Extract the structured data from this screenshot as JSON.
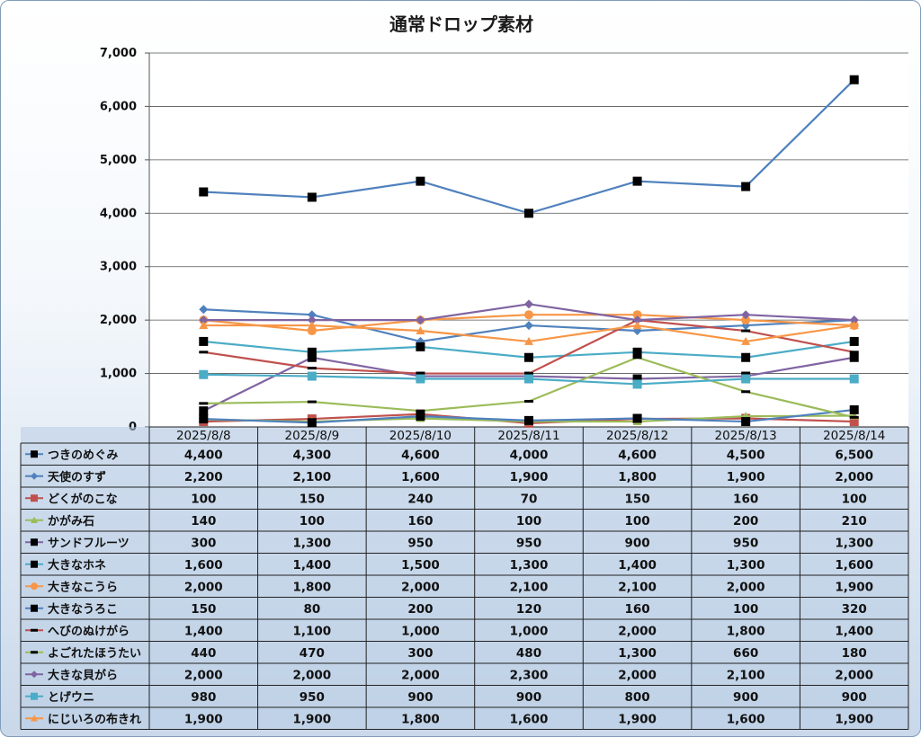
{
  "chart_data": {
    "type": "line",
    "title": "通常ドロップ素材",
    "categories": [
      "2025/8/8",
      "2025/8/9",
      "2025/8/10",
      "2025/8/11",
      "2025/8/12",
      "2025/8/13",
      "2025/8/14"
    ],
    "ylim": [
      0,
      7000
    ],
    "yticks": [
      "0",
      "1,000",
      "2,000",
      "3,000",
      "4,000",
      "5,000",
      "6,000",
      "7,000"
    ],
    "grid": true,
    "legend": "data-table",
    "series": [
      {
        "name": "つきのめぐみ",
        "color": "#4f81bd",
        "marker": "square-black",
        "values": [
          4400,
          4300,
          4600,
          4000,
          4600,
          4500,
          6500
        ],
        "labels": [
          "4,400",
          "4,300",
          "4,600",
          "4,000",
          "4,600",
          "4,500",
          "6,500"
        ]
      },
      {
        "name": "天使のすず",
        "color": "#4f81bd",
        "marker": "diamond",
        "values": [
          2200,
          2100,
          1600,
          1900,
          1800,
          1900,
          2000
        ],
        "labels": [
          "2,200",
          "2,100",
          "1,600",
          "1,900",
          "1,800",
          "1,900",
          "2,000"
        ]
      },
      {
        "name": "どくがのこな",
        "color": "#c0504d",
        "marker": "square",
        "values": [
          100,
          150,
          240,
          70,
          150,
          160,
          100
        ],
        "labels": [
          "100",
          "150",
          "240",
          "70",
          "150",
          "160",
          "100"
        ]
      },
      {
        "name": "かがみ石",
        "color": "#9bbb59",
        "marker": "triangle",
        "values": [
          140,
          100,
          160,
          100,
          100,
          200,
          210
        ],
        "labels": [
          "140",
          "100",
          "160",
          "100",
          "100",
          "200",
          "210"
        ]
      },
      {
        "name": "サンドフルーツ",
        "color": "#8064a2",
        "marker": "square-black",
        "values": [
          300,
          1300,
          950,
          950,
          900,
          950,
          1300
        ],
        "labels": [
          "300",
          "1,300",
          "950",
          "950",
          "900",
          "950",
          "1,300"
        ]
      },
      {
        "name": "大きなホネ",
        "color": "#4bacc6",
        "marker": "square-black",
        "values": [
          1600,
          1400,
          1500,
          1300,
          1400,
          1300,
          1600
        ],
        "labels": [
          "1,600",
          "1,400",
          "1,500",
          "1,300",
          "1,400",
          "1,300",
          "1,600"
        ]
      },
      {
        "name": "大きなこうら",
        "color": "#f79646",
        "marker": "circle",
        "values": [
          2000,
          1800,
          2000,
          2100,
          2100,
          2000,
          1900
        ],
        "labels": [
          "2,000",
          "1,800",
          "2,000",
          "2,100",
          "2,100",
          "2,000",
          "1,900"
        ]
      },
      {
        "name": "大きなうろこ",
        "color": "#4f81bd",
        "marker": "square-black",
        "values": [
          150,
          80,
          200,
          120,
          160,
          100,
          320
        ],
        "labels": [
          "150",
          "80",
          "200",
          "120",
          "160",
          "100",
          "320"
        ]
      },
      {
        "name": "へびのぬけがら",
        "color": "#c0504d",
        "marker": "dash",
        "values": [
          1400,
          1100,
          1000,
          1000,
          2000,
          1800,
          1400
        ],
        "labels": [
          "1,400",
          "1,100",
          "1,000",
          "1,000",
          "2,000",
          "1,800",
          "1,400"
        ]
      },
      {
        "name": "よごれたほうたい",
        "color": "#9bbb59",
        "marker": "dash",
        "values": [
          440,
          470,
          300,
          480,
          1300,
          660,
          180
        ],
        "labels": [
          "440",
          "470",
          "300",
          "480",
          "1,300",
          "660",
          "180"
        ]
      },
      {
        "name": "大きな貝がら",
        "color": "#8064a2",
        "marker": "diamond",
        "values": [
          2000,
          2000,
          2000,
          2300,
          2000,
          2100,
          2000
        ],
        "labels": [
          "2,000",
          "2,000",
          "2,000",
          "2,300",
          "2,000",
          "2,100",
          "2,000"
        ]
      },
      {
        "name": "とげウニ",
        "color": "#4bacc6",
        "marker": "square",
        "values": [
          980,
          950,
          900,
          900,
          800,
          900,
          900
        ],
        "labels": [
          "980",
          "950",
          "900",
          "900",
          "800",
          "900",
          "900"
        ]
      },
      {
        "name": "にじいろの布きれ",
        "color": "#f79646",
        "marker": "triangle",
        "values": [
          1900,
          1900,
          1800,
          1600,
          1900,
          1600,
          1900
        ],
        "labels": [
          "1,900",
          "1,900",
          "1,800",
          "1,600",
          "1,900",
          "1,600",
          "1,900"
        ]
      }
    ]
  }
}
